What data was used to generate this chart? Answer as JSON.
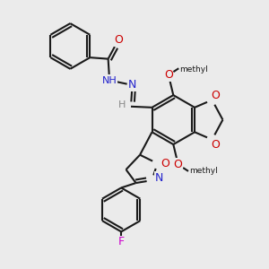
{
  "background_color": "#ebebeb",
  "bond_color": "#1a1a1a",
  "o_color": "#cc0000",
  "n_color": "#2222cc",
  "f_color": "#cc00cc",
  "h_color": "#888888",
  "figsize": [
    3.0,
    3.0
  ],
  "dpi": 100,
  "xlim": [
    0,
    10
  ],
  "ylim": [
    0,
    10
  ]
}
